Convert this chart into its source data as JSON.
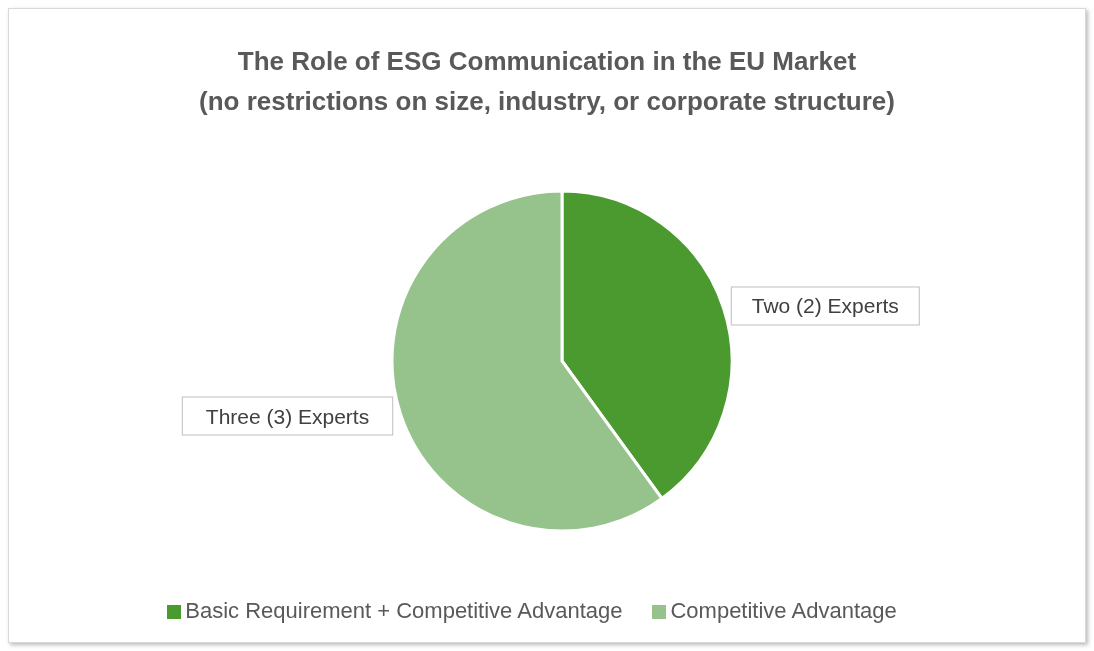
{
  "chart_data": {
    "type": "pie",
    "title": "The Role of ESG Communication in the EU Market",
    "subtitle": "(no restrictions on size, industry, or corporate structure)",
    "categories": [
      "Basic Requirement + Competitive Advantage",
      "Competitive Advantage"
    ],
    "values": [
      2,
      3
    ],
    "colors": [
      "#4a9a30",
      "#96c38b"
    ],
    "value_labels": [
      "Two (2) Experts",
      "Three (3) Experts"
    ],
    "legend": "bottom"
  }
}
